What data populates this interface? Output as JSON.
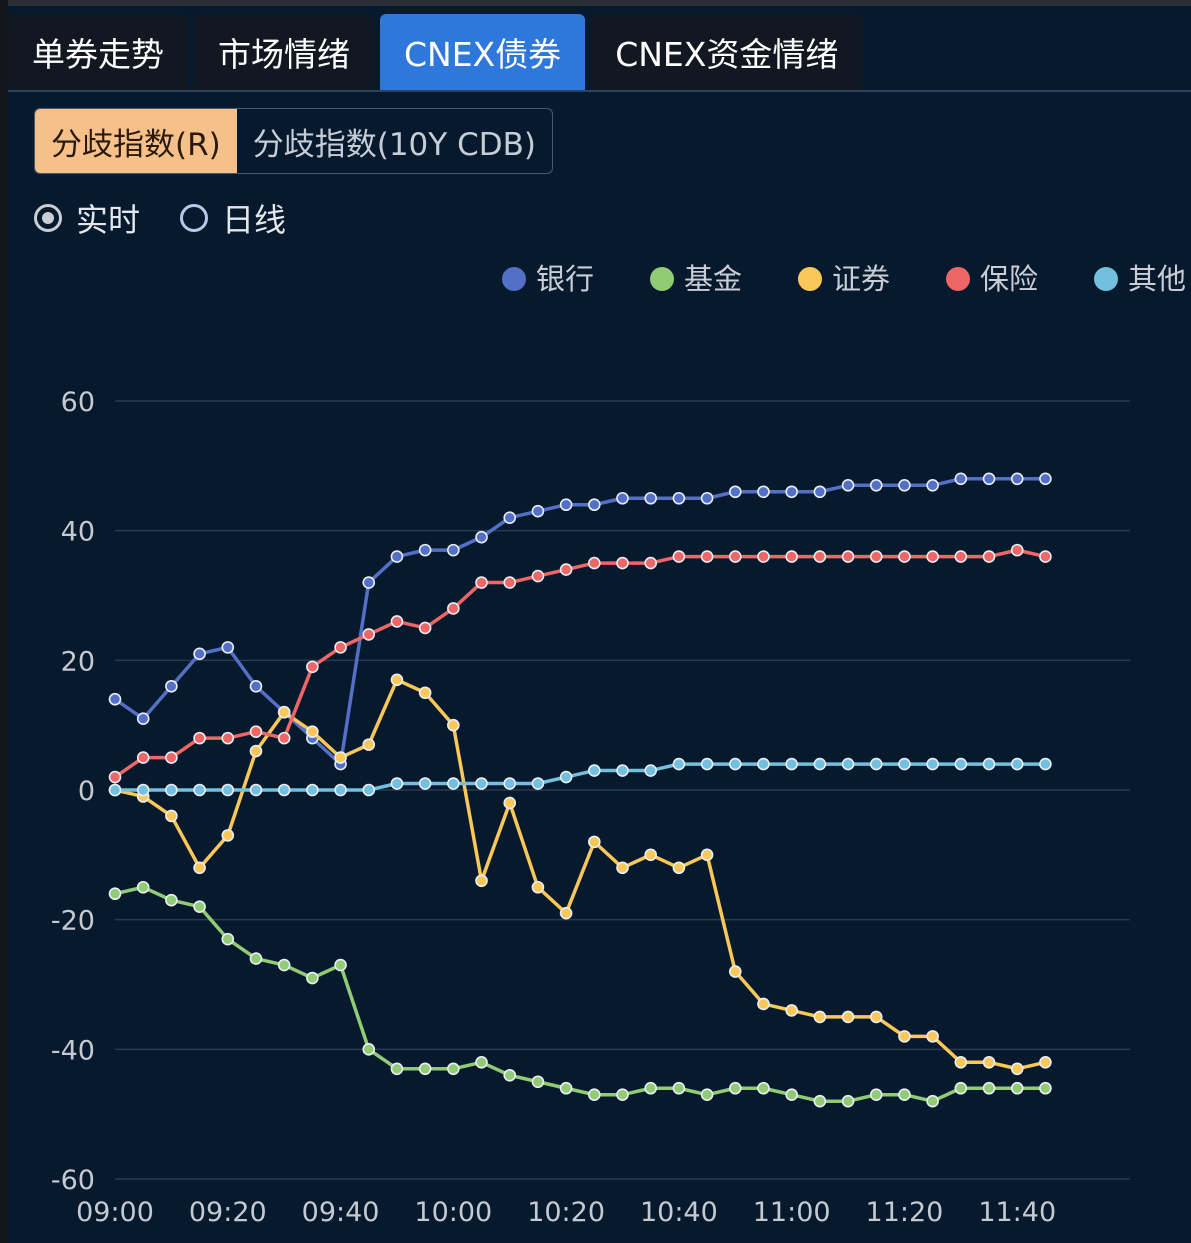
{
  "tabs": [
    {
      "label": "单券走势",
      "active": false
    },
    {
      "label": "市场情绪",
      "active": false
    },
    {
      "label": "CNEX债券",
      "active": true
    },
    {
      "label": "CNEX资金情绪",
      "active": false
    }
  ],
  "subtabs": [
    {
      "label": "分歧指数(R)",
      "active": true
    },
    {
      "label": "分歧指数(10Y CDB)",
      "active": false
    }
  ],
  "radios": [
    {
      "label": "实时",
      "checked": true
    },
    {
      "label": "日线",
      "checked": false
    }
  ],
  "colors": {
    "background": "#07192d",
    "tab_active": "#2f78db",
    "subtab_active": "#f6c08a",
    "grid": "#2a3a52",
    "axis_text": "#c4c9d2"
  },
  "chart_data": {
    "type": "line",
    "x": [
      "09:00",
      "09:05",
      "09:10",
      "09:15",
      "09:20",
      "09:25",
      "09:30",
      "09:35",
      "09:40",
      "09:45",
      "09:50",
      "09:55",
      "10:00",
      "10:05",
      "10:10",
      "10:15",
      "10:20",
      "10:25",
      "10:30",
      "10:35",
      "10:40",
      "10:45",
      "10:50",
      "10:55",
      "11:00",
      "11:05",
      "11:10",
      "11:15",
      "11:20",
      "11:25",
      "11:30",
      "11:35",
      "11:40",
      "11:45",
      "11:50",
      "11:55",
      "12:00"
    ],
    "x_tick_labels": [
      "09:00",
      "09:20",
      "09:40",
      "10:00",
      "10:20",
      "10:40",
      "11:00",
      "11:20",
      "11:40"
    ],
    "ylim": [
      -60,
      60
    ],
    "y_ticks": [
      60,
      40,
      20,
      0,
      -20,
      -40,
      -60
    ],
    "grid": true,
    "legend_position": "top-right",
    "series": [
      {
        "name": "银行",
        "color": "#5470c6",
        "values": [
          14,
          11,
          16,
          21,
          22,
          16,
          12,
          8,
          4,
          32,
          36,
          37,
          37,
          39,
          42,
          43,
          44,
          44,
          45,
          45,
          45,
          45,
          46,
          46,
          46,
          46,
          47,
          47,
          47,
          47,
          48,
          48,
          48,
          48,
          null,
          null,
          null
        ]
      },
      {
        "name": "基金",
        "color": "#91cc75",
        "values": [
          -16,
          -15,
          -17,
          -18,
          -23,
          -26,
          -27,
          -29,
          -27,
          -40,
          -43,
          -43,
          -43,
          -42,
          -44,
          -45,
          -46,
          -47,
          -47,
          -46,
          -46,
          -47,
          -46,
          -46,
          -47,
          -48,
          -48,
          -47,
          -47,
          -48,
          -46,
          -46,
          -46,
          -46,
          null,
          null,
          null
        ]
      },
      {
        "name": "证券",
        "color": "#fac858",
        "values": [
          0,
          -1,
          -4,
          -12,
          -7,
          6,
          12,
          9,
          5,
          7,
          17,
          15,
          10,
          -14,
          -2,
          -15,
          -19,
          -8,
          -12,
          -10,
          -12,
          -10,
          -28,
          -33,
          -34,
          -35,
          -35,
          -35,
          -38,
          -38,
          -42,
          -42,
          -43,
          -42,
          null,
          null,
          null
        ]
      },
      {
        "name": "保险",
        "color": "#ee6666",
        "values": [
          2,
          5,
          5,
          8,
          8,
          9,
          8,
          19,
          22,
          24,
          26,
          25,
          28,
          32,
          32,
          33,
          34,
          35,
          35,
          35,
          36,
          36,
          36,
          36,
          36,
          36,
          36,
          36,
          36,
          36,
          36,
          36,
          37,
          36,
          null,
          null,
          null
        ]
      },
      {
        "name": "其他",
        "color": "#73c0de",
        "values": [
          0,
          0,
          0,
          0,
          0,
          0,
          0,
          0,
          0,
          0,
          1,
          1,
          1,
          1,
          1,
          1,
          2,
          3,
          3,
          3,
          4,
          4,
          4,
          4,
          4,
          4,
          4,
          4,
          4,
          4,
          4,
          4,
          4,
          4,
          null,
          null,
          null
        ]
      }
    ]
  }
}
